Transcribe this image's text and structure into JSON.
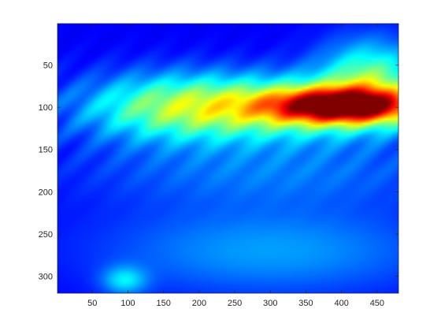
{
  "chart_data": {
    "type": "heatmap",
    "title": "",
    "xlabel": "",
    "ylabel": "",
    "xlim": [
      1,
      480
    ],
    "ylim": [
      1,
      320
    ],
    "y_reversed": true,
    "colormap": "jet",
    "x_ticks": [
      50,
      100,
      150,
      200,
      250,
      300,
      350,
      400,
      450
    ],
    "y_ticks": [
      50,
      100,
      150,
      200,
      250,
      300
    ],
    "x_tick_labels": [
      "50",
      "100",
      "150",
      "200",
      "250",
      "300",
      "350",
      "400",
      "450"
    ],
    "y_tick_labels": [
      "50",
      "100",
      "150",
      "200",
      "250",
      "300"
    ],
    "value_range": [
      0,
      1
    ],
    "field": {
      "base": 0.12,
      "components": [
        {
          "x": 405,
          "y": 98,
          "sx": 70,
          "sy": 14,
          "amp": 0.72
        },
        {
          "x": 330,
          "y": 100,
          "sx": 140,
          "sy": 26,
          "amp": 0.38
        },
        {
          "x": 160,
          "y": 100,
          "sx": 95,
          "sy": 28,
          "amp": 0.26
        },
        {
          "x": 300,
          "y": 175,
          "sx": 190,
          "sy": 30,
          "amp": 0.12
        },
        {
          "x": 440,
          "y": 60,
          "sx": 50,
          "sy": 30,
          "amp": 0.3
        },
        {
          "x": 300,
          "y": 270,
          "sx": 170,
          "sy": 38,
          "amp": 0.16
        },
        {
          "x": 95,
          "y": 305,
          "sx": 22,
          "sy": 12,
          "amp": 0.2
        }
      ]
    }
  }
}
